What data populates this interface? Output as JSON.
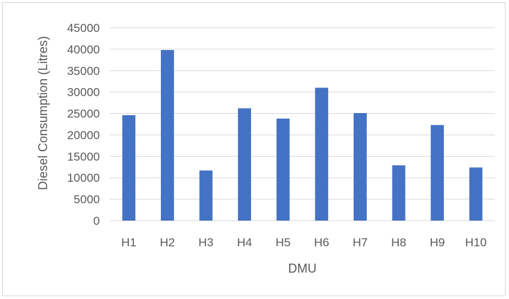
{
  "chart_data": {
    "type": "bar",
    "title": "",
    "xlabel": "DMU",
    "ylabel": "Diesel Consumption (Litres)",
    "categories": [
      "H1",
      "H2",
      "H3",
      "H4",
      "H5",
      "H6",
      "H7",
      "H8",
      "H9",
      "H10"
    ],
    "series": [
      {
        "values": [
          24600,
          39800,
          11700,
          26200,
          23800,
          31000,
          25100,
          12900,
          22300,
          12400
        ]
      }
    ],
    "ylim": [
      0,
      45000
    ],
    "yticks": [
      "0",
      "5000",
      "10000",
      "15000",
      "20000",
      "25000",
      "30000",
      "35000",
      "40000",
      "45000"
    ],
    "grid": true,
    "legend": "none",
    "colors": {
      "bar": "#4472c4",
      "grid": "#d9d9d9",
      "text": "#595959"
    }
  }
}
